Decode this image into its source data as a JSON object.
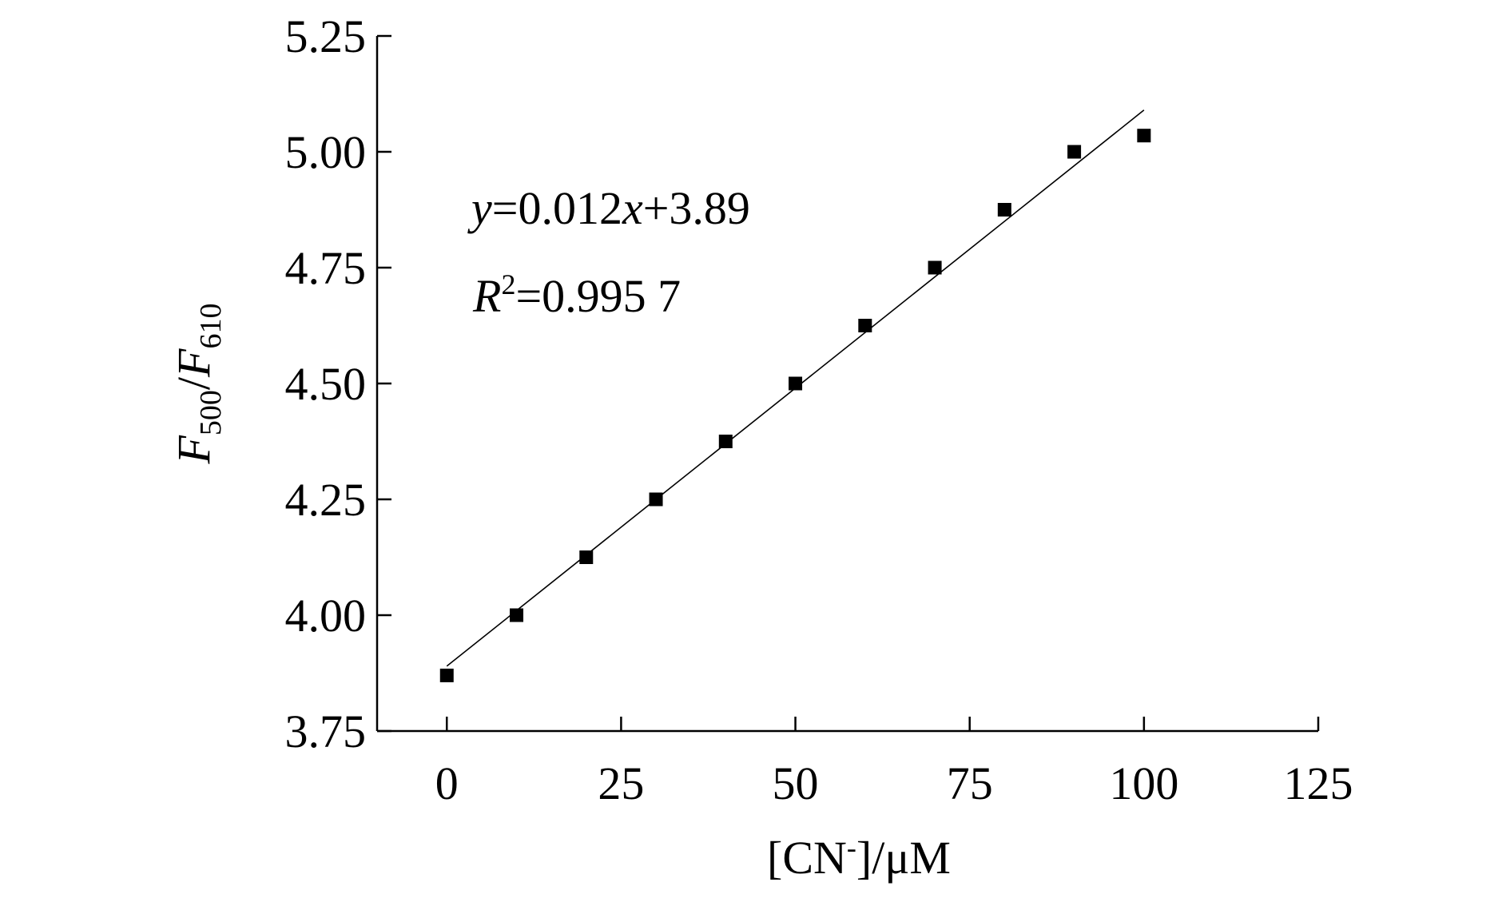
{
  "chart_data": {
    "type": "scatter",
    "x": [
      0,
      10,
      20,
      30,
      40,
      50,
      60,
      70,
      80,
      90,
      100
    ],
    "y": [
      3.87,
      4.0,
      4.125,
      4.25,
      4.375,
      4.5,
      4.625,
      4.75,
      4.875,
      5.0,
      5.035
    ],
    "fit": {
      "slope": 0.012,
      "intercept": 3.89,
      "x_range": [
        0,
        100
      ]
    },
    "xlim": [
      -10,
      125
    ],
    "ylim": [
      3.75,
      5.25
    ],
    "xticks": [
      0,
      25,
      50,
      75,
      100,
      125
    ],
    "yticks": [
      3.75,
      4.0,
      4.25,
      4.5,
      4.75,
      5.0,
      5.25
    ],
    "xtick_labels": [
      "0",
      "25",
      "50",
      "75",
      "100",
      "125"
    ],
    "ytick_labels": [
      "3.75",
      "4.00",
      "4.25",
      "4.50",
      "4.75",
      "5.00",
      "5.25"
    ],
    "xlabel": {
      "main": "[CN",
      "sup": "-",
      "rest": "]/μM"
    },
    "ylabel": {
      "F1": "F",
      "sub1": "500",
      "slash": "/",
      "F2": "F",
      "sub2": "610"
    },
    "equation": {
      "y": "y",
      "mid": "=0.012",
      "x": "x",
      "rest": "+3.89"
    },
    "r2": {
      "R": "R",
      "sup": "2",
      "rest": "=0.995 7"
    },
    "grid": false,
    "marker": "square",
    "color": "#000000"
  }
}
